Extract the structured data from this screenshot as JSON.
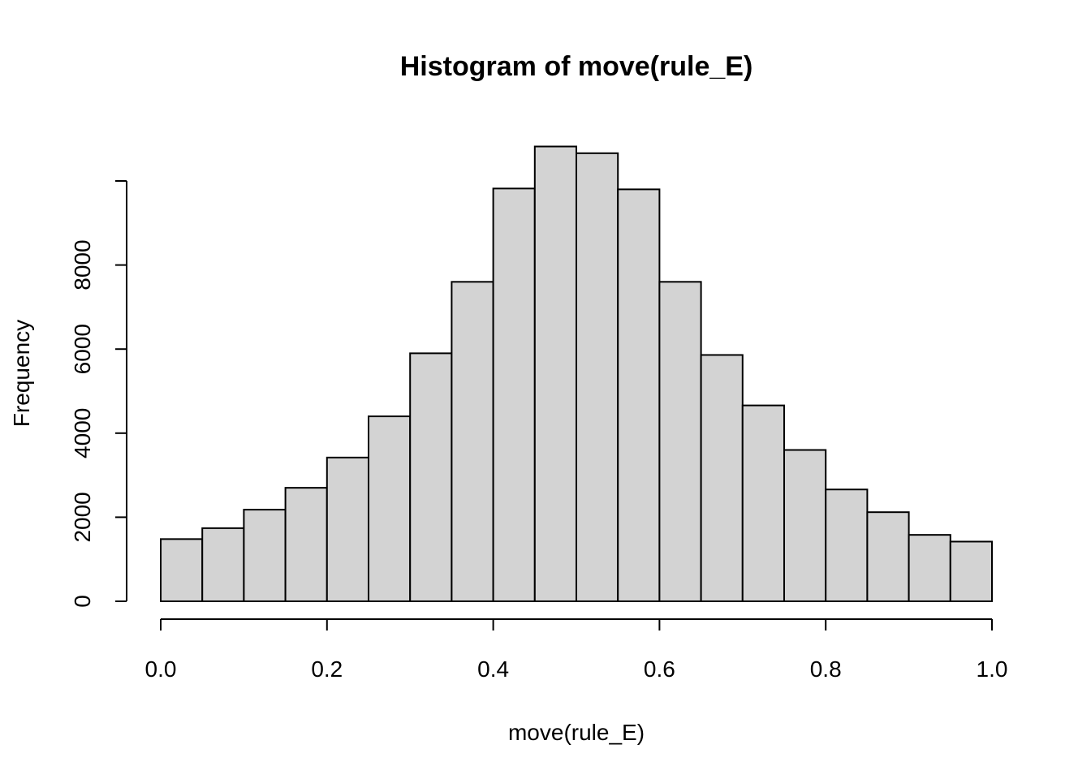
{
  "chart_data": {
    "type": "bar",
    "title": "Histogram of move(rule_E)",
    "xlabel": "move(rule_E)",
    "ylabel": "Frequency",
    "xlim": [
      0,
      1
    ],
    "ylim": [
      0,
      10000
    ],
    "x_ticks": [
      "0.0",
      "0.2",
      "0.4",
      "0.6",
      "0.8",
      "1.0"
    ],
    "y_ticks": [
      "0",
      "2000",
      "4000",
      "6000",
      "8000"
    ],
    "bin_width": 0.05,
    "bins": [
      {
        "start": 0.0,
        "end": 0.05,
        "value": 1480
      },
      {
        "start": 0.05,
        "end": 0.1,
        "value": 1740
      },
      {
        "start": 0.1,
        "end": 0.15,
        "value": 2180
      },
      {
        "start": 0.15,
        "end": 0.2,
        "value": 2700
      },
      {
        "start": 0.2,
        "end": 0.25,
        "value": 3420
      },
      {
        "start": 0.25,
        "end": 0.3,
        "value": 4400
      },
      {
        "start": 0.3,
        "end": 0.35,
        "value": 5900
      },
      {
        "start": 0.35,
        "end": 0.4,
        "value": 7600
      },
      {
        "start": 0.4,
        "end": 0.45,
        "value": 9820
      },
      {
        "start": 0.45,
        "end": 0.5,
        "value": 10820
      },
      {
        "start": 0.5,
        "end": 0.55,
        "value": 10660
      },
      {
        "start": 0.55,
        "end": 0.6,
        "value": 9800
      },
      {
        "start": 0.6,
        "end": 0.65,
        "value": 7600
      },
      {
        "start": 0.65,
        "end": 0.7,
        "value": 5860
      },
      {
        "start": 0.7,
        "end": 0.75,
        "value": 4660
      },
      {
        "start": 0.75,
        "end": 0.8,
        "value": 3600
      },
      {
        "start": 0.8,
        "end": 0.85,
        "value": 2660
      },
      {
        "start": 0.85,
        "end": 0.9,
        "value": 2120
      },
      {
        "start": 0.9,
        "end": 0.95,
        "value": 1580
      },
      {
        "start": 0.95,
        "end": 1.0,
        "value": 1420
      }
    ],
    "bar_fill": "#d3d3d3",
    "bar_stroke": "#000000",
    "grid": false
  }
}
